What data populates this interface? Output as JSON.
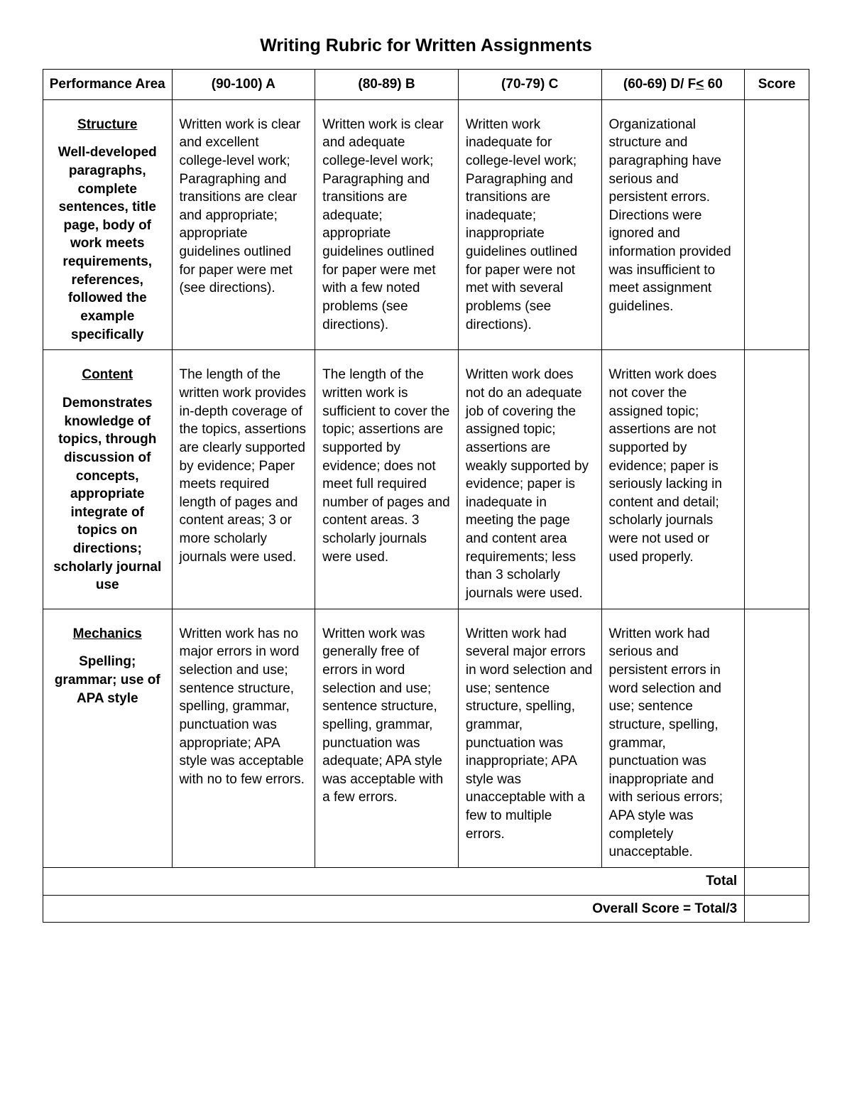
{
  "title": "Writing Rubric for Written Assignments",
  "columns": {
    "performance_area": "Performance Area",
    "gradeA": "(90-100) A",
    "gradeB": "(80-89) B",
    "gradeC": "(70-79) C",
    "gradeD": "(60-69) D/ F< 60",
    "score": "Score"
  },
  "rows": [
    {
      "area_title": "Structure",
      "area_desc": "Well-developed paragraphs, complete sentences, title page, body of work meets requirements, references, followed the example specifically",
      "cells": [
        "Written work is clear and excellent college-level work; Paragraphing and transitions are clear and appropriate; appropriate guidelines outlined for paper were met (see directions).",
        "Written work is clear and adequate college-level work; Paragraphing and transitions are adequate; appropriate guidelines outlined for paper were met with a few noted problems (see directions).",
        "Written work inadequate for college-level work; Paragraphing and transitions are inadequate; inappropriate guidelines outlined for paper were not met with several problems (see directions).",
        "Organizational structure and paragraphing have serious and persistent errors. Directions were ignored and information provided was insufficient to meet assignment guidelines."
      ]
    },
    {
      "area_title": "Content",
      "area_desc": "Demonstrates knowledge of topics, through discussion of concepts, appropriate integrate of topics on directions; scholarly journal use",
      "cells": [
        "The length of the written work provides in-depth coverage of the topics, assertions are clearly supported by evidence; Paper meets required length of pages and content areas; 3 or more scholarly journals were used.",
        "The length of the written work is sufficient to cover the topic; assertions are supported by evidence; does not meet full required number of pages and content areas. 3 scholarly journals were used.",
        "Written work does not do an adequate job of covering the assigned topic; assertions are weakly supported by evidence; paper is inadequate in meeting the page and content area requirements; less than 3 scholarly journals were used.",
        "Written work does not cover the assigned topic; assertions are not supported by evidence; paper is seriously lacking in content and detail; scholarly journals were not used or used properly."
      ]
    },
    {
      "area_title": "Mechanics",
      "area_desc": "Spelling; grammar; use of APA style",
      "cells": [
        "Written work has no major errors in word selection and use; sentence structure, spelling, grammar, punctuation was appropriate; APA style was acceptable with no to few errors.",
        "Written work was generally free of errors in word selection and use; sentence structure, spelling, grammar, punctuation was adequate; APA style was acceptable with a few errors.",
        "Written work had several major errors in word selection and use; sentence structure, spelling, grammar, punctuation was inappropriate; APA style was unacceptable with a few to multiple errors.",
        "Written work had serious and persistent errors in word selection and use; sentence structure, spelling, grammar, punctuation was inappropriate and with serious errors; APA style was completely unacceptable."
      ]
    }
  ],
  "footer": {
    "total_label": "Total",
    "overall_label": "Overall Score = Total/3"
  }
}
